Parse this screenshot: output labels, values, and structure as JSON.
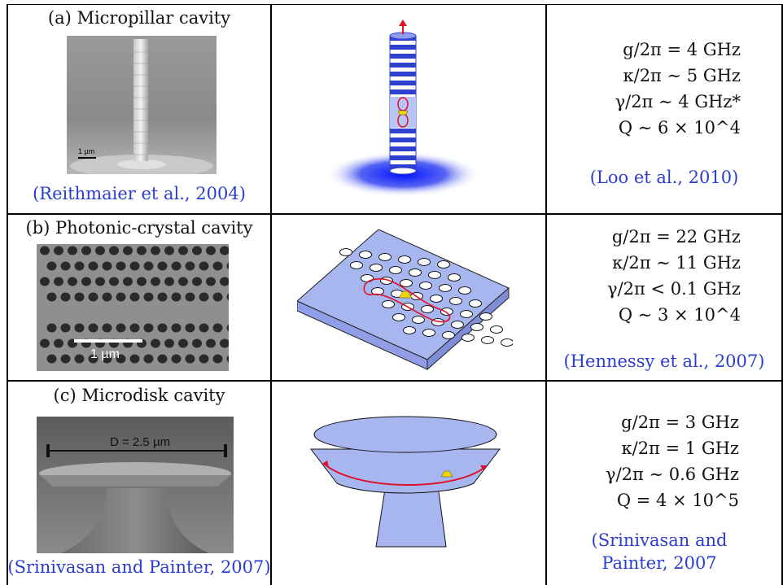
{
  "rows": [
    {
      "title": "(a) Micropillar cavity",
      "photo_scale": "1 µm",
      "citation_left": "(Reithmaier et al., 2004)",
      "params": [
        "g/2π = 4 GHz",
        "κ/2π ∼ 5 GHz",
        "γ/2π ∼ 4 GHz*",
        "Q ∼ 6 × 10^4"
      ],
      "citation_right": "(Loo et al., 2010)"
    },
    {
      "title": "(b) Photonic-crystal cavity",
      "photo_scale": "1 µm",
      "params": [
        "g/2π = 22 GHz",
        "κ/2π ∼ 11 GHz",
        "γ/2π < 0.1 GHz",
        "Q ∼ 3 × 10^4"
      ],
      "citation_right": "(Hennessy et al., 2007)"
    },
    {
      "title": "(c) Microdisk cavity",
      "photo_scale": "D = 2.5 µm",
      "citation_left": "(Srinivasan and Painter, 2007)",
      "params": [
        "g/2π = 3 GHz",
        "κ/2π = 1 GHz",
        "γ/2π ∼ 0.6 GHz",
        "Q = 4 × 10^5"
      ],
      "citation_right": "(Srinivasan and Painter, 2007"
    }
  ],
  "colors": {
    "citation": "#2a3dcf",
    "device_blue": "#9fb0ee",
    "pillar_blue": "#2f3fd0",
    "field_red": "#e0102a",
    "emitter_yellow": "#f2d400"
  }
}
